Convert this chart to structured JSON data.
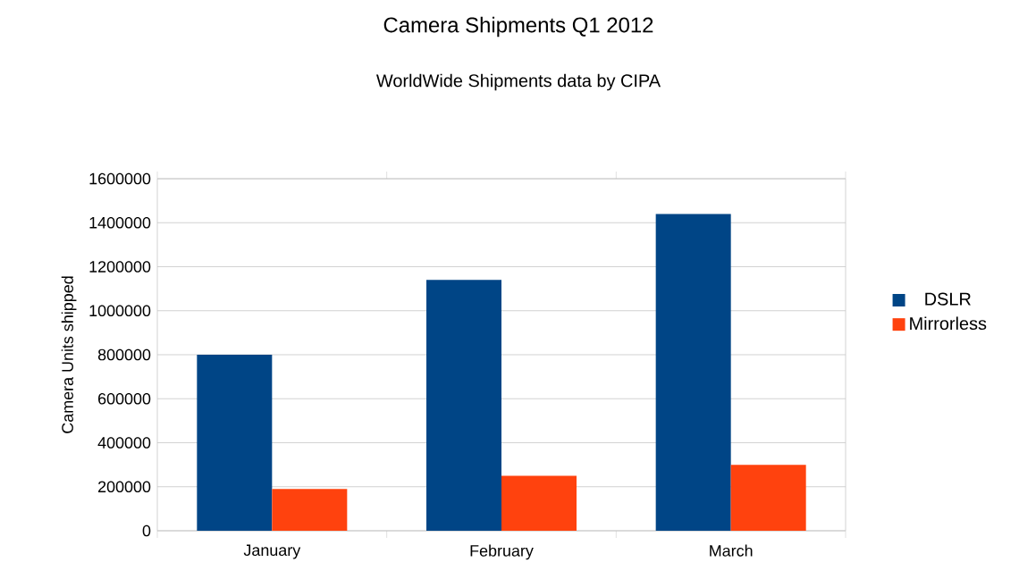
{
  "chart_data": {
    "type": "bar",
    "title": "Camera Shipments Q1 2012",
    "subtitle": "WorldWide Shipments data by CIPA",
    "ylabel": "Camera Units shipped",
    "categories": [
      "January",
      "February",
      "March"
    ],
    "series": [
      {
        "name": "DSLR",
        "color": "#004586",
        "values": [
          800000,
          1140000,
          1440000
        ]
      },
      {
        "name": "Mirrorless",
        "color": "#ff420e",
        "values": [
          190000,
          250000,
          300000
        ]
      }
    ],
    "ylim": [
      0,
      1600000
    ],
    "yticks": [
      0,
      200000,
      400000,
      600000,
      800000,
      1000000,
      1200000,
      1400000,
      1600000
    ],
    "grid": "y",
    "legend": "right"
  }
}
